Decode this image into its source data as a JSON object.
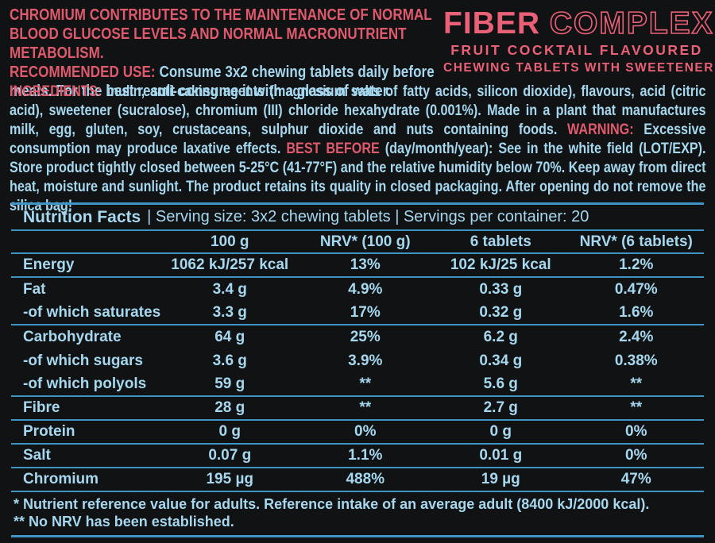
{
  "colors": {
    "background": "#111214",
    "pink": "#e05a6e",
    "logo_pink": "#ea6177",
    "blue_text": "#a5d8ef",
    "divider_blue": "#3f94c6"
  },
  "claims": {
    "health_claim": "CHROMIUM CONTRIBUTES TO THE MAINTENANCE OF NORMAL BLOOD GLUCOSE LEVELS AND NORMAL MACRONUTRIENT METABOLISM.",
    "recommended_label": "RECOMMENDED USE: ",
    "recommended_text": "Consume 3x2 chewing tablets daily before meals. For the best result consume it with a glass of water."
  },
  "logo": {
    "brand": "FIBER",
    "brand2": "COMPLEX",
    "flavour": "FRUIT COCKTAIL FLAVOURED",
    "form": "CHEWING TABLETS WITH SWEETENER"
  },
  "details": {
    "ingredients_label": "INGREDIENTS: ",
    "ingredients_text": "inulin, anti-caking agents (magnesium salts of fatty acids, silicon dioxide), flavours, acid (citric acid), sweetener (sucralose), chromium (III) chloride hexahydrate (0.001%). Made in a plant that manufactures milk, egg, gluten, soy, crustaceans, sulphur dioxide and nuts containing foods. ",
    "warning_label": "WARNING: ",
    "warning_text": "Excessive consumption may produce laxative effects. ",
    "best_before_label": "BEST BEFORE ",
    "best_before_text": "(day/month/year): See in the white field (LOT/EXP). Store product tightly closed between 5-25°C (41-77°F) and the relative humidity below 70%. Keep away from direct heat, moisture and sunlight. The product retains its quality in closed packaging. After opening do not remove the silica bag!"
  },
  "nutrition": {
    "title": "Nutrition Facts",
    "serving_info": "| Serving size: 3x2 chewing tablets | Servings per container: 20",
    "columns": [
      "",
      "100 g",
      "NRV* (100 g)",
      "6 tablets",
      "NRV* (6 tablets)"
    ],
    "rows": [
      {
        "name": "Energy",
        "c1": "1062 kJ/257 kcal",
        "c2": "13%",
        "c3": "102 kJ/25 kcal",
        "c4": "1.2%"
      },
      {
        "name": "Fat",
        "c1": "3.4 g",
        "c2": "4.9%",
        "c3": "0.33 g",
        "c4": "0.47%"
      },
      {
        "name": "-of which saturates",
        "c1": "3.3 g",
        "c2": "17%",
        "c3": "0.32 g",
        "c4": "1.6%"
      },
      {
        "name": "Carbohydrate",
        "c1": "64 g",
        "c2": "25%",
        "c3": "6.2 g",
        "c4": "2.4%"
      },
      {
        "name": "-of which sugars",
        "c1": "3.6 g",
        "c2": "3.9%",
        "c3": "0.34 g",
        "c4": "0.38%"
      },
      {
        "name": "-of which polyols",
        "c1": "59 g",
        "c2": "**",
        "c3": "5.6 g",
        "c4": "**"
      },
      {
        "name": "Fibre",
        "c1": "28 g",
        "c2": "**",
        "c3": "2.7 g",
        "c4": "**"
      },
      {
        "name": "Protein",
        "c1": "0 g",
        "c2": "0%",
        "c3": "0 g",
        "c4": "0%"
      },
      {
        "name": "Salt",
        "c1": "0.07 g",
        "c2": "1.1%",
        "c3": "0.01 g",
        "c4": "0%"
      },
      {
        "name": "Chromium",
        "c1": "195 µg",
        "c2": "488%",
        "c3": "19 µg",
        "c4": "47%"
      }
    ],
    "footnotes": [
      "* Nutrient reference value for adults. Reference intake of an average adult (8400 kJ/2000 kcal).",
      "** No NRV has been established."
    ]
  }
}
